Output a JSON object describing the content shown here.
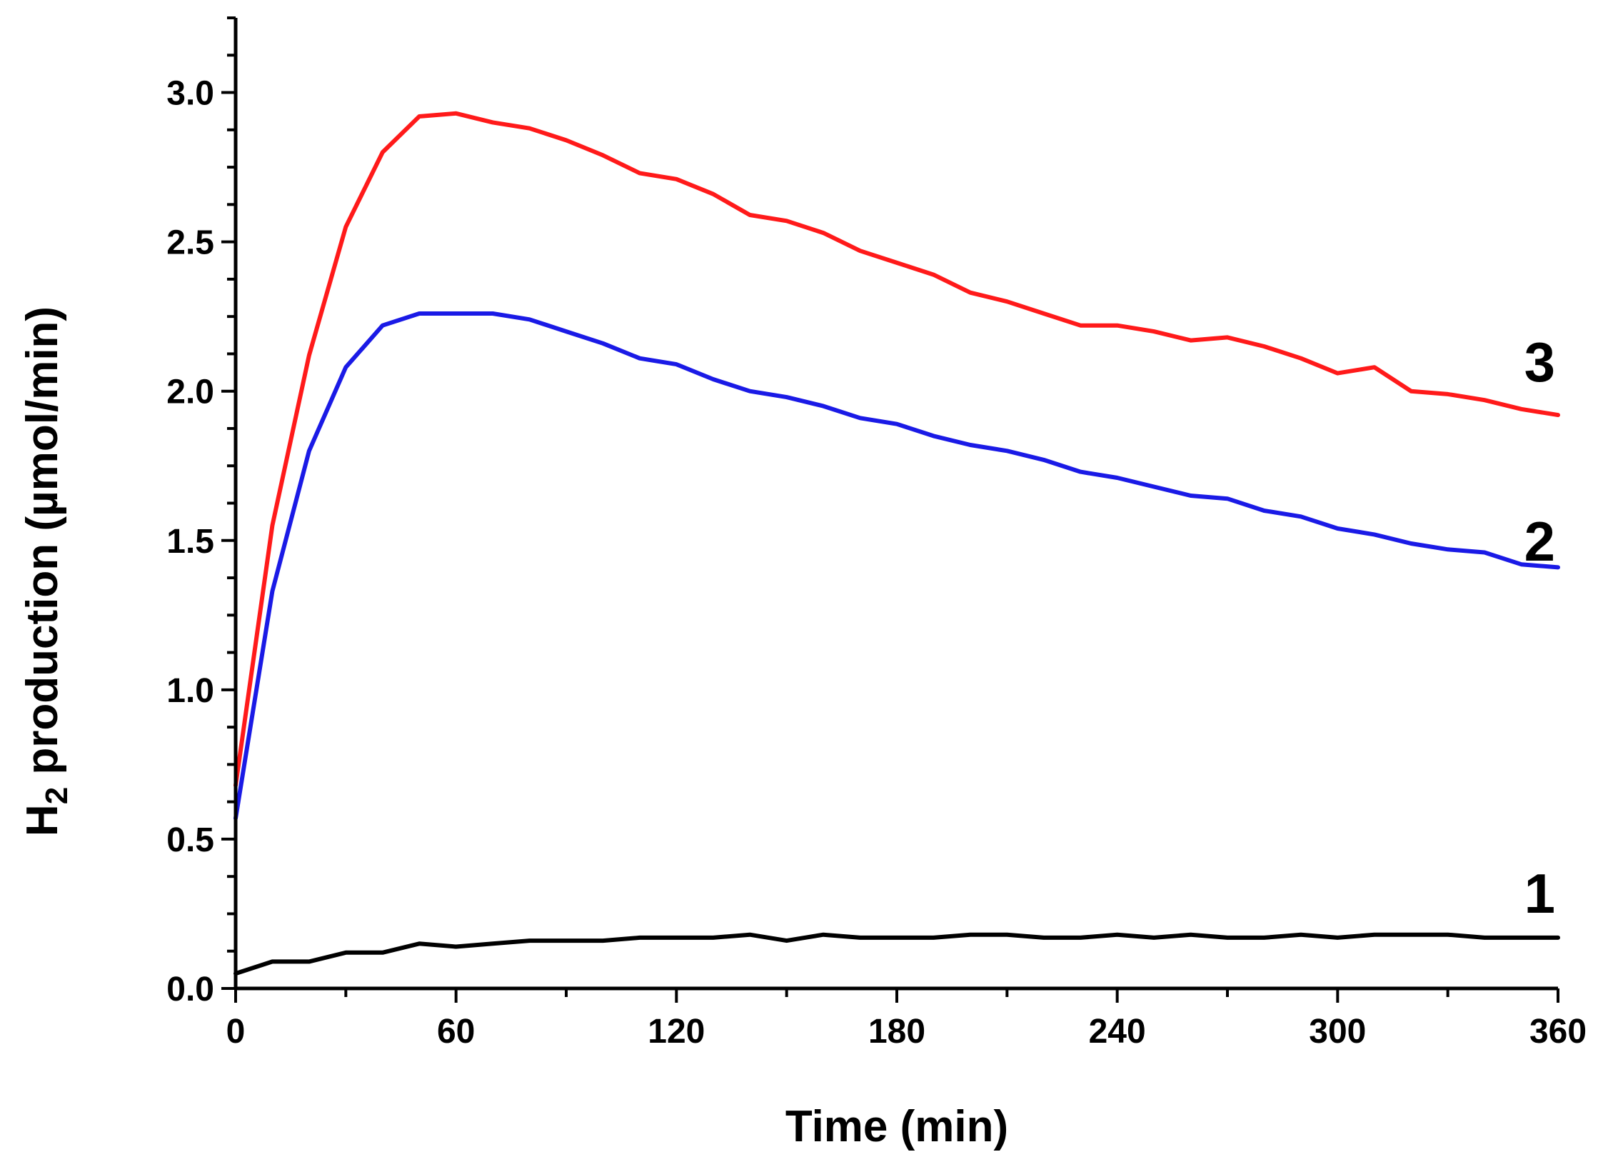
{
  "chart_data": {
    "type": "line",
    "title": "",
    "xlabel": "Time (min)",
    "ylabel": {
      "prefix": "H",
      "subscript": "2",
      "suffix": " production (µmol/min)"
    },
    "xlim": [
      0,
      360
    ],
    "ylim": [
      0,
      3.25
    ],
    "grid": false,
    "xticks": [
      0,
      60,
      120,
      180,
      240,
      300,
      360
    ],
    "xtick_labels": [
      "0",
      "60",
      "120",
      "180",
      "240",
      "300",
      "360"
    ],
    "yticks": [
      0,
      0.5,
      1.0,
      1.5,
      2.0,
      2.5,
      3.0
    ],
    "ytick_labels": [
      "0.0",
      "0.5",
      "1.0",
      "1.5",
      "2.0",
      "2.5",
      "3.0"
    ],
    "x": [
      0,
      10,
      20,
      30,
      40,
      50,
      60,
      70,
      80,
      90,
      100,
      110,
      120,
      130,
      140,
      150,
      160,
      170,
      180,
      190,
      200,
      210,
      220,
      230,
      240,
      250,
      260,
      270,
      280,
      290,
      300,
      310,
      320,
      330,
      340,
      350,
      360
    ],
    "series": [
      {
        "name": "1",
        "label": "1",
        "color": "#000000",
        "label_at": [
          355,
          0.32
        ],
        "values": [
          0.05,
          0.09,
          0.09,
          0.12,
          0.12,
          0.15,
          0.14,
          0.15,
          0.16,
          0.16,
          0.16,
          0.17,
          0.17,
          0.17,
          0.18,
          0.16,
          0.18,
          0.17,
          0.17,
          0.17,
          0.18,
          0.18,
          0.17,
          0.17,
          0.18,
          0.17,
          0.18,
          0.17,
          0.17,
          0.18,
          0.17,
          0.18,
          0.18,
          0.18,
          0.17,
          0.17,
          0.17
        ]
      },
      {
        "name": "2",
        "label": "2",
        "color": "#1a1ae6",
        "label_at": [
          355,
          1.5
        ],
        "values": [
          0.57,
          1.33,
          1.8,
          2.08,
          2.22,
          2.26,
          2.26,
          2.26,
          2.24,
          2.2,
          2.16,
          2.11,
          2.09,
          2.04,
          2.0,
          1.98,
          1.95,
          1.91,
          1.89,
          1.85,
          1.82,
          1.8,
          1.77,
          1.73,
          1.71,
          1.68,
          1.65,
          1.64,
          1.6,
          1.58,
          1.54,
          1.52,
          1.49,
          1.47,
          1.46,
          1.42,
          1.41
        ]
      },
      {
        "name": "3",
        "label": "3",
        "color": "#ff1a1a",
        "label_at": [
          355,
          2.1
        ],
        "values": [
          0.68,
          1.55,
          2.12,
          2.55,
          2.8,
          2.92,
          2.93,
          2.9,
          2.88,
          2.84,
          2.79,
          2.73,
          2.71,
          2.66,
          2.59,
          2.57,
          2.53,
          2.47,
          2.43,
          2.39,
          2.33,
          2.3,
          2.26,
          2.22,
          2.22,
          2.2,
          2.17,
          2.18,
          2.15,
          2.11,
          2.06,
          2.08,
          2.0,
          1.99,
          1.97,
          1.94,
          1.92
        ]
      }
    ]
  }
}
